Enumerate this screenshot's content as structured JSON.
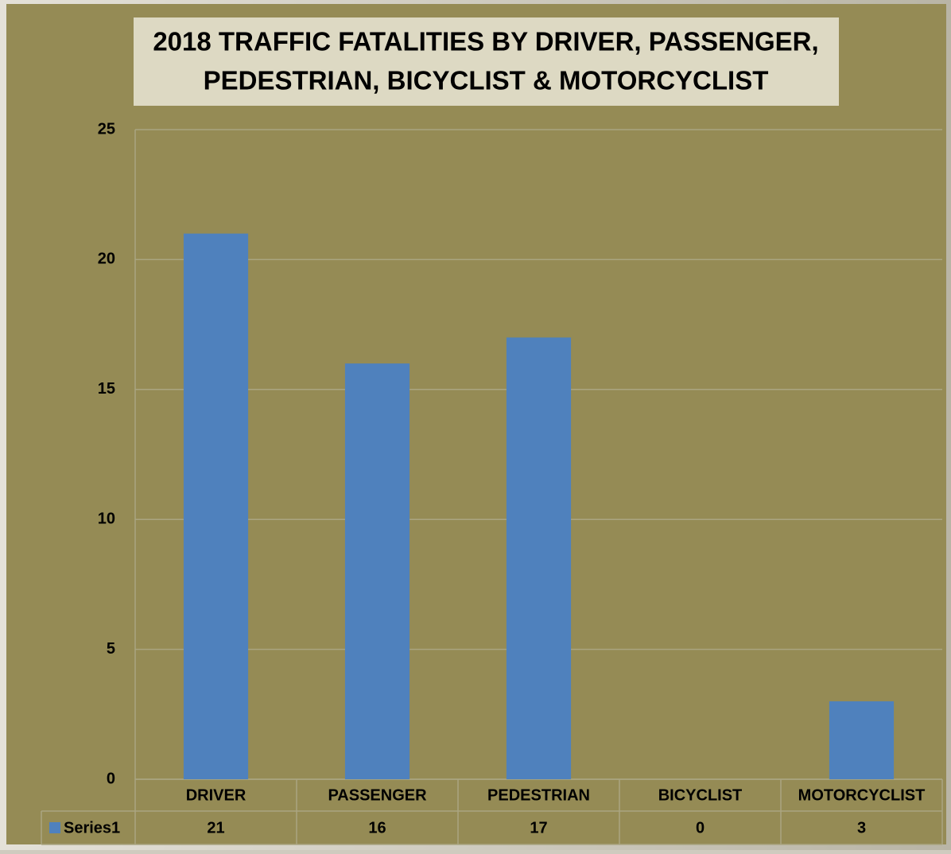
{
  "chart_data": {
    "type": "bar",
    "title": [
      "2018 TRAFFIC FATALITIES BY DRIVER, PASSENGER,",
      "PEDESTRIAN, BICYCLIST & MOTORCYCLIST"
    ],
    "categories": [
      "DRIVER",
      "PASSENGER",
      "PEDESTRIAN",
      "BICYCLIST",
      "MOTORCYCLIST"
    ],
    "series": [
      {
        "name": "Series1",
        "color": "#4f81bd",
        "values": [
          21,
          16,
          17,
          0,
          3
        ]
      }
    ],
    "ylim": [
      0,
      25
    ],
    "yticks": [
      0,
      5,
      10,
      15,
      20,
      25
    ],
    "grid": true
  }
}
